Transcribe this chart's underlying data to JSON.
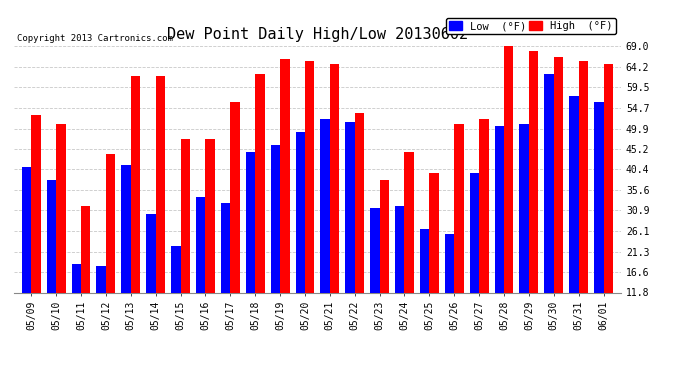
{
  "title": "Dew Point Daily High/Low 20130602",
  "copyright": "Copyright 2013 Cartronics.com",
  "dates": [
    "05/09",
    "05/10",
    "05/11",
    "05/12",
    "05/13",
    "05/14",
    "05/15",
    "05/16",
    "05/17",
    "05/18",
    "05/19",
    "05/20",
    "05/21",
    "05/22",
    "05/23",
    "05/24",
    "05/25",
    "05/26",
    "05/27",
    "05/28",
    "05/29",
    "05/30",
    "05/31",
    "06/01"
  ],
  "high": [
    53.0,
    51.0,
    32.0,
    44.0,
    62.0,
    62.0,
    47.5,
    47.5,
    56.0,
    62.5,
    66.0,
    65.5,
    65.0,
    53.5,
    38.0,
    44.5,
    39.5,
    51.0,
    52.0,
    69.0,
    68.0,
    66.5,
    65.5,
    65.0
  ],
  "low": [
    41.0,
    38.0,
    18.5,
    18.0,
    41.5,
    30.0,
    22.5,
    34.0,
    32.5,
    44.5,
    46.0,
    49.0,
    52.0,
    51.5,
    31.5,
    32.0,
    26.5,
    25.5,
    39.5,
    50.5,
    51.0,
    62.5,
    57.5,
    56.0
  ],
  "high_color": "#ff0000",
  "low_color": "#0000ff",
  "bg_color": "#ffffff",
  "grid_color": "#bbbbbb",
  "yticks": [
    11.8,
    16.6,
    21.3,
    26.1,
    30.9,
    35.6,
    40.4,
    45.2,
    49.9,
    54.7,
    59.5,
    64.2,
    69.0
  ],
  "ylim_min": 11.8,
  "ylim_max": 69.0,
  "bar_width": 0.38,
  "legend_low_label": "Low  (°F)",
  "legend_high_label": "High  (°F)",
  "title_fontsize": 11,
  "tick_fontsize": 7,
  "copyright_fontsize": 6.5
}
